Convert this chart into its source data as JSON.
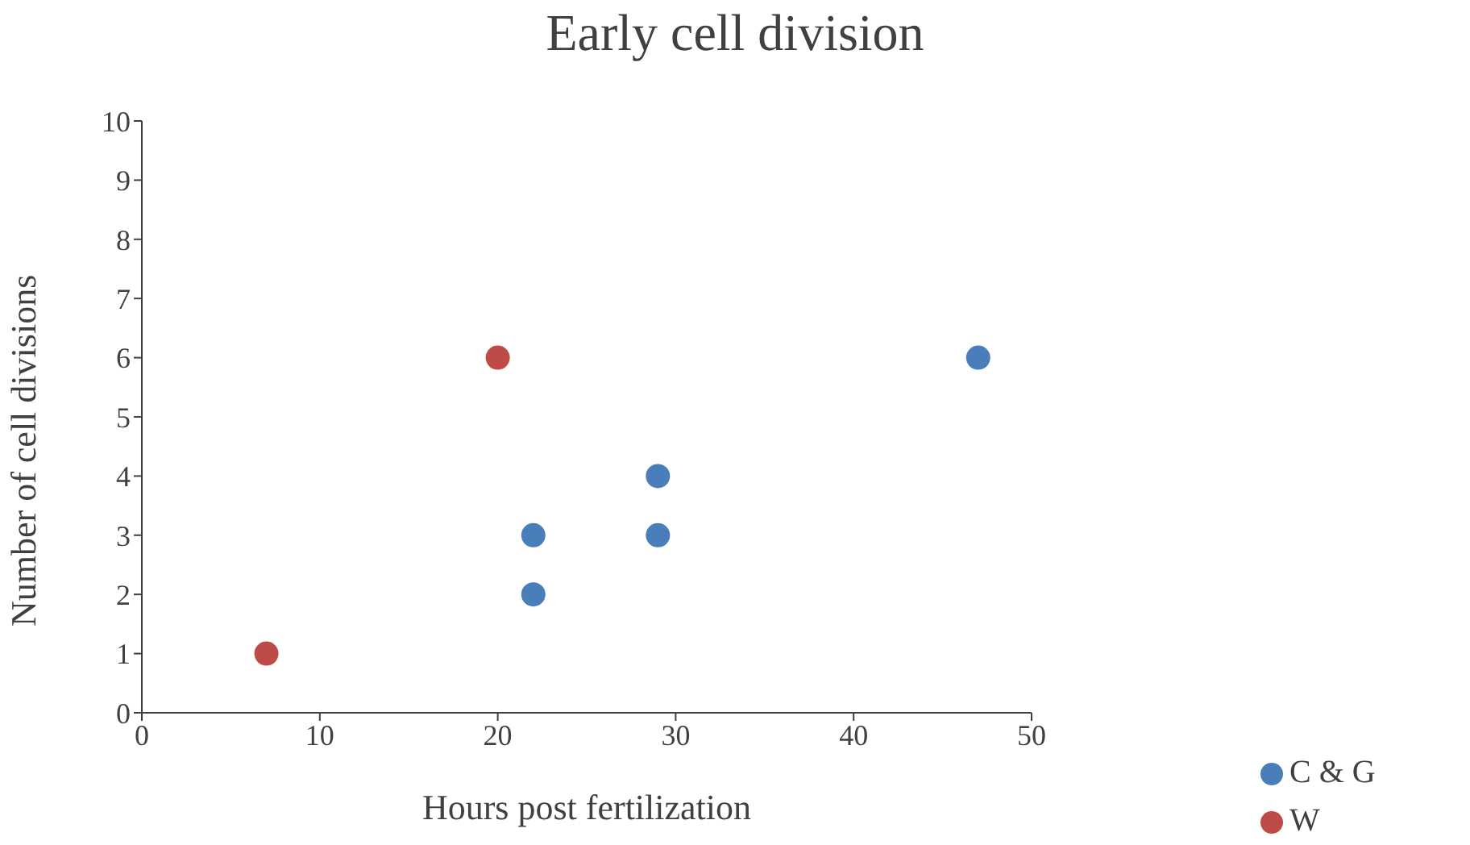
{
  "chart_data": {
    "type": "scatter",
    "title": "Early cell division",
    "xlabel": "Hours post fertilization",
    "ylabel": "Number of cell divisions",
    "series": [
      {
        "name": "C & G",
        "color": "#4a7ebb",
        "x": [
          22,
          22,
          29,
          29,
          47
        ],
        "values": [
          3,
          2,
          4,
          3,
          6
        ]
      },
      {
        "name": "W",
        "color": "#be4b48",
        "x": [
          7,
          20
        ],
        "values": [
          1,
          6
        ]
      }
    ],
    "xlim": [
      0,
      50
    ],
    "xticks": [
      0,
      10,
      20,
      30,
      40,
      50
    ],
    "ylim": [
      0,
      10
    ],
    "yticks": [
      0,
      1,
      2,
      3,
      4,
      5,
      6,
      7,
      8,
      9,
      10
    ],
    "marker": "circle",
    "legend": "bottom right"
  }
}
